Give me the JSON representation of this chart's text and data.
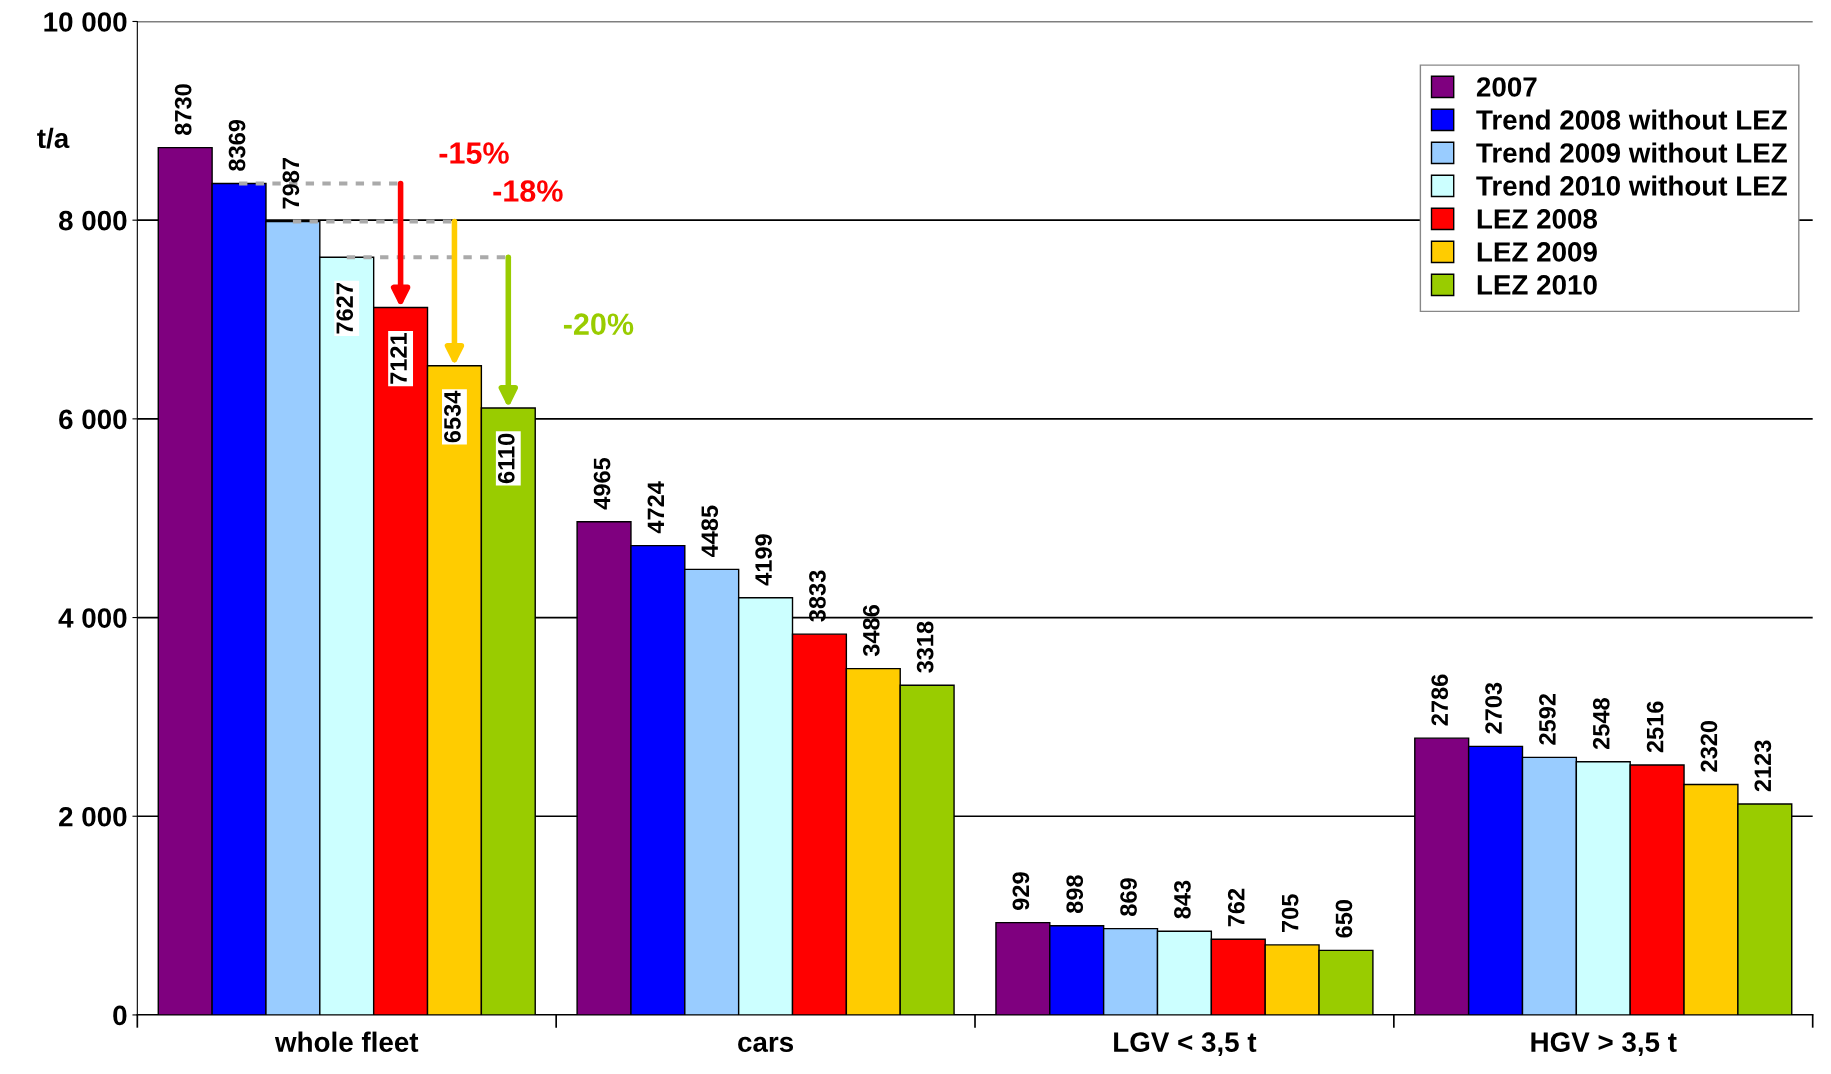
{
  "chart_data": {
    "type": "bar",
    "ylabel": "t/a",
    "categories": [
      "whole fleet",
      "cars",
      "LGV < 3,5 t",
      "HGV > 3,5 t"
    ],
    "series": [
      {
        "name": "2007",
        "color": "#7f007f",
        "values": [
          8730,
          4965,
          929,
          2786
        ]
      },
      {
        "name": "Trend 2008 without LEZ",
        "color": "#0000ff",
        "values": [
          8369,
          4724,
          898,
          2703
        ]
      },
      {
        "name": "Trend 2009 without LEZ",
        "color": "#99ccff",
        "values": [
          7987,
          4485,
          869,
          2592
        ]
      },
      {
        "name": "Trend 2010 without LEZ",
        "color": "#ccffff",
        "values": [
          7627,
          4199,
          843,
          2548
        ]
      },
      {
        "name": "LEZ 2008",
        "color": "#ff0000",
        "values": [
          7121,
          3833,
          762,
          2516
        ]
      },
      {
        "name": "LEZ 2009",
        "color": "#ffcc00",
        "values": [
          6534,
          3486,
          705,
          2320
        ]
      },
      {
        "name": "LEZ 2010",
        "color": "#99cc00",
        "values": [
          6110,
          3318,
          650,
          2123
        ]
      }
    ],
    "ylim": [
      0,
      10000
    ],
    "yticks": [
      {
        "value": 0,
        "label": "0"
      },
      {
        "value": 2000,
        "label": "2 000"
      },
      {
        "value": 4000,
        "label": "4 000"
      },
      {
        "value": 6000,
        "label": "6 000"
      },
      {
        "value": 8000,
        "label": "8 000"
      },
      {
        "value": 10000,
        "label": "10 000"
      }
    ],
    "grid": "y",
    "legend": "top right",
    "data_labels": true,
    "annotations": [
      "-15%",
      "-18%",
      "-20%"
    ]
  }
}
